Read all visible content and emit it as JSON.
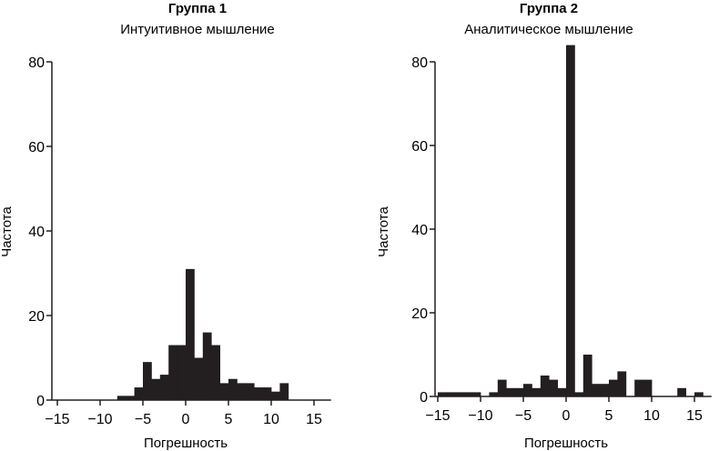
{
  "chart_data": [
    {
      "type": "bar",
      "title": "Группа 1",
      "subtitle": "Интуитивное мышление",
      "xlabel": "Погрешность",
      "ylabel": "Частота",
      "xlim": [
        -15,
        17
      ],
      "ylim": [
        0,
        80
      ],
      "bin_width": 1,
      "xticks": [
        -15,
        -10,
        -5,
        0,
        5,
        10,
        15
      ],
      "xtick_labels": [
        "−15",
        "−10",
        "−5",
        "0",
        "5",
        "10",
        "15"
      ],
      "yticks": [
        0,
        20,
        40,
        60,
        80
      ],
      "ytick_labels": [
        "0",
        "20",
        "40",
        "60",
        "80"
      ],
      "bins": [
        -8,
        -7,
        -6,
        -5,
        -4,
        -3,
        -2,
        -1,
        0,
        1,
        2,
        3,
        4,
        5,
        6,
        7,
        8,
        9,
        10,
        11
      ],
      "values": [
        1,
        1,
        3,
        9,
        5,
        6,
        13,
        13,
        31,
        10,
        16,
        13,
        4,
        5,
        4,
        4,
        3,
        3,
        2,
        4
      ],
      "bar_color": "#231f20"
    },
    {
      "type": "bar",
      "title": "Группа 2",
      "subtitle": "Аналитическое мышление",
      "xlabel": "Погрешность",
      "ylabel": "Частота",
      "xlim": [
        -15,
        17
      ],
      "ylim": [
        0,
        80
      ],
      "bin_width": 1,
      "xticks": [
        -15,
        -10,
        -5,
        0,
        5,
        10,
        15
      ],
      "xtick_labels": [
        "−15",
        "−10",
        "−5",
        "0",
        "5",
        "10",
        "15"
      ],
      "yticks": [
        0,
        20,
        40,
        60,
        80
      ],
      "ytick_labels": [
        "0",
        "20",
        "40",
        "60",
        "80"
      ],
      "bins": [
        -15,
        -14,
        -13,
        -12,
        -11,
        -10,
        -9,
        -8,
        -7,
        -6,
        -5,
        -4,
        -3,
        -2,
        -1,
        0,
        1,
        2,
        3,
        4,
        5,
        6,
        7,
        8,
        9,
        10,
        11,
        12,
        13,
        14,
        15
      ],
      "values": [
        1,
        1,
        1,
        1,
        1,
        0,
        1,
        4,
        2,
        2,
        3,
        2,
        5,
        4,
        2,
        84,
        1,
        10,
        3,
        3,
        4,
        6,
        0,
        4,
        4,
        0,
        0,
        0,
        2,
        0,
        1
      ],
      "bar_color": "#231f20"
    }
  ]
}
